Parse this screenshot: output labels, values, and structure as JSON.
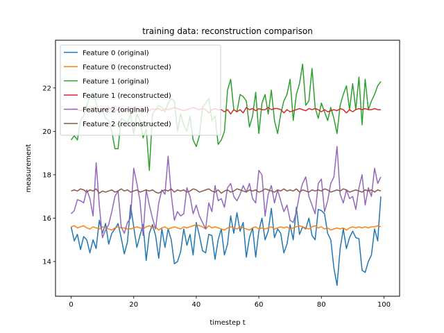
{
  "chart_data": {
    "type": "line",
    "title": "training data: reconstruction comparison",
    "xlabel": "timestep t",
    "ylabel": "measurement",
    "xlim": [
      -5,
      105
    ],
    "ylim": [
      12.4,
      24.2
    ],
    "xticks": [
      0,
      20,
      40,
      60,
      80,
      100
    ],
    "yticks": [
      14,
      16,
      18,
      20,
      22
    ],
    "grid": false,
    "legend_position": "upper-left",
    "x": [
      0,
      1,
      2,
      3,
      4,
      5,
      6,
      7,
      8,
      9,
      10,
      11,
      12,
      13,
      14,
      15,
      16,
      17,
      18,
      19,
      20,
      21,
      22,
      23,
      24,
      25,
      26,
      27,
      28,
      29,
      30,
      31,
      32,
      33,
      34,
      35,
      36,
      37,
      38,
      39,
      40,
      41,
      42,
      43,
      44,
      45,
      46,
      47,
      48,
      49,
      50,
      51,
      52,
      53,
      54,
      55,
      56,
      57,
      58,
      59,
      60,
      61,
      62,
      63,
      64,
      65,
      66,
      67,
      68,
      69,
      70,
      71,
      72,
      73,
      74,
      75,
      76,
      77,
      78,
      79,
      80,
      81,
      82,
      83,
      84,
      85,
      86,
      87,
      88,
      89,
      90,
      91,
      92,
      93,
      94,
      95,
      96,
      97,
      98,
      99
    ],
    "series": [
      {
        "name": "Feature 0 (original)",
        "color": "#1f77b4",
        "values": [
          15.6,
          14.95,
          15.25,
          14.55,
          15.15,
          15.0,
          14.4,
          15.0,
          14.6,
          15.9,
          15.3,
          15.75,
          14.8,
          15.3,
          15.5,
          15.75,
          15.1,
          14.35,
          14.9,
          16.6,
          15.6,
          14.65,
          15.2,
          15.7,
          14.05,
          15.3,
          15.7,
          15.2,
          14.15,
          15.5,
          14.65,
          15.5,
          15.0,
          13.9,
          14.0,
          14.45,
          15.5,
          14.75,
          15.25,
          14.3,
          15.8,
          15.2,
          14.5,
          14.4,
          15.25,
          15.2,
          14.1,
          15.0,
          15.5,
          14.3,
          14.8,
          16.1,
          15.3,
          16.25,
          15.4,
          15.8,
          14.2,
          15.1,
          15.55,
          14.2,
          15.4,
          16.0,
          15.0,
          15.4,
          16.45,
          15.1,
          15.5,
          15.3,
          14.4,
          14.8,
          15.7,
          15.0,
          16.5,
          15.25,
          15.6,
          15.5,
          16.0,
          15.2,
          15.0,
          16.4,
          16.35,
          16.2,
          15.3,
          15.0,
          13.7,
          12.9,
          14.6,
          15.5,
          14.6,
          15.1,
          15.4,
          15.1,
          15.05,
          13.6,
          13.5,
          14.0,
          14.3,
          15.5,
          14.95,
          17.0
        ]
      },
      {
        "name": "Feature 0 (reconstructed)",
        "color": "#ff7f0e",
        "values": [
          15.6,
          15.65,
          15.55,
          15.6,
          15.65,
          15.55,
          15.5,
          15.6,
          15.55,
          15.5,
          15.6,
          15.55,
          15.5,
          15.45,
          15.55,
          15.6,
          15.55,
          15.55,
          15.5,
          15.5,
          15.55,
          15.6,
          15.55,
          15.5,
          15.6,
          15.65,
          15.55,
          15.6,
          15.45,
          15.55,
          15.6,
          15.5,
          15.55,
          15.6,
          15.55,
          15.5,
          15.6,
          15.55,
          15.6,
          15.65,
          15.7,
          15.65,
          15.6,
          15.5,
          15.65,
          15.55,
          15.6,
          15.55,
          15.5,
          15.45,
          15.55,
          15.6,
          15.55,
          15.5,
          15.6,
          15.55,
          15.5,
          15.45,
          15.55,
          15.6,
          15.5,
          15.55,
          15.5,
          15.55,
          15.6,
          15.5,
          15.55,
          15.6,
          15.55,
          15.6,
          15.5,
          15.55,
          15.6,
          15.65,
          15.6,
          15.55,
          15.5,
          15.6,
          15.65,
          15.55,
          15.6,
          15.5,
          15.55,
          15.45,
          15.5,
          15.55,
          15.5,
          15.55,
          15.45,
          15.55,
          15.6,
          15.55,
          15.6,
          15.55,
          15.6,
          15.55,
          15.6,
          15.6,
          15.65,
          15.6
        ]
      },
      {
        "name": "Feature 1 (original)",
        "color": "#2ca02c",
        "values": [
          19.6,
          19.8,
          19.6,
          20.5,
          20.7,
          21.2,
          21.6,
          21.8,
          21.3,
          20.8,
          21.0,
          20.6,
          20.5,
          20.0,
          19.2,
          19.2,
          20.6,
          20.5,
          20.4,
          20.8,
          19.9,
          20.8,
          20.5,
          19.7,
          20.1,
          18.2,
          20.8,
          21.0,
          21.2,
          21.1,
          20.9,
          21.3,
          21.5,
          21.4,
          20.0,
          20.8,
          20.3,
          20.0,
          20.7,
          19.6,
          19.3,
          19.8,
          21.1,
          21.3,
          21.5,
          20.5,
          20.7,
          19.4,
          19.6,
          20.0,
          21.9,
          22.4,
          21.0,
          20.9,
          21.7,
          21.6,
          21.4,
          20.2,
          20.7,
          21.8,
          19.9,
          21.3,
          21.7,
          20.8,
          21.9,
          20.5,
          19.9,
          20.8,
          21.4,
          21.7,
          22.4,
          20.5,
          21.7,
          22.2,
          23.1,
          21.2,
          21.4,
          22.9,
          21.1,
          20.6,
          21.3,
          20.9,
          20.5,
          21.1,
          20.6,
          19.9,
          21.2,
          21.7,
          22.1,
          21.0,
          22.2,
          21.0,
          22.5,
          20.3,
          22.4,
          21.0,
          21.4,
          21.7,
          22.1,
          22.3
        ]
      },
      {
        "name": "Feature 1 (reconstructed)",
        "color": "#d62728",
        "values": [
          21.0,
          21.05,
          21.0,
          20.95,
          21.0,
          21.05,
          21.0,
          21.1,
          21.0,
          20.9,
          21.05,
          21.0,
          21.1,
          21.0,
          20.95,
          21.0,
          21.05,
          20.9,
          21.0,
          21.05,
          21.1,
          21.05,
          21.0,
          21.05,
          21.0,
          20.95,
          21.05,
          21.0,
          21.05,
          20.95,
          21.05,
          21.0,
          21.05,
          21.1,
          21.05,
          21.0,
          20.95,
          21.0,
          21.05,
          21.1,
          21.05,
          21.0,
          21.05,
          21.0,
          20.85,
          21.0,
          21.05,
          21.0,
          21.0,
          20.9,
          21.0,
          20.8,
          21.0,
          20.9,
          21.0,
          20.85,
          21.1,
          21.0,
          21.05,
          20.95,
          21.05,
          21.0,
          21.0,
          21.1,
          21.0,
          21.05,
          21.05,
          21.0,
          20.85,
          21.0,
          20.9,
          20.95,
          21.0,
          21.05,
          21.0,
          20.95,
          21.05,
          21.0,
          21.05,
          21.0,
          20.9,
          21.0,
          20.9,
          20.95,
          21.0,
          20.95,
          21.05,
          21.0,
          20.85,
          21.0,
          20.9,
          21.0,
          21.05,
          21.0,
          21.05,
          21.0,
          21.0,
          21.05,
          21.0,
          21.0
        ]
      },
      {
        "name": "Feature 2 (original)",
        "color": "#9467bd",
        "values": [
          16.2,
          16.35,
          16.85,
          16.8,
          16.7,
          17.3,
          16.9,
          16.1,
          18.55,
          16.6,
          15.1,
          15.45,
          15.7,
          16.3,
          17.0,
          17.25,
          15.6,
          15.3,
          15.8,
          16.0,
          18.3,
          17.6,
          16.8,
          15.2,
          17.3,
          16.6,
          16.0,
          15.5,
          16.7,
          17.3,
          17.1,
          18.85,
          17.1,
          15.9,
          16.3,
          16.1,
          16.2,
          17.4,
          17.0,
          16.2,
          16.6,
          16.1,
          15.8,
          15.5,
          16.7,
          16.3,
          17.5,
          16.8,
          16.9,
          16.5,
          17.4,
          17.6,
          17.0,
          16.8,
          17.1,
          17.5,
          17.2,
          17.6,
          16.9,
          16.7,
          18.2,
          18.0,
          16.1,
          17.1,
          17.5,
          16.7,
          17.3,
          16.8,
          16.3,
          16.6,
          15.9,
          15.8,
          16.3,
          17.1,
          17.6,
          17.9,
          17.0,
          16.6,
          16.2,
          17.6,
          17.8,
          16.3,
          16.8,
          17.6,
          17.9,
          19.3,
          17.1,
          16.7,
          17.3,
          16.9,
          17.0,
          16.4,
          17.4,
          18.0,
          16.6,
          17.4,
          17.0,
          18.3,
          17.6,
          17.9
        ]
      },
      {
        "name": "Feature 2 (reconstructed)",
        "color": "#8c564b",
        "values": [
          17.25,
          17.3,
          17.25,
          17.35,
          17.3,
          17.2,
          17.3,
          17.25,
          17.35,
          17.15,
          17.25,
          17.2,
          17.25,
          17.3,
          17.2,
          17.25,
          17.35,
          17.25,
          17.3,
          17.2,
          17.25,
          17.3,
          17.2,
          17.25,
          17.3,
          17.25,
          17.3,
          17.2,
          17.15,
          17.25,
          17.3,
          17.25,
          17.35,
          17.2,
          17.3,
          17.25,
          17.3,
          17.2,
          17.25,
          17.35,
          17.3,
          17.2,
          17.25,
          17.3,
          17.35,
          17.25,
          17.2,
          17.3,
          17.15,
          17.25,
          17.3,
          17.2,
          17.25,
          17.35,
          17.3,
          17.25,
          17.2,
          17.3,
          17.25,
          17.3,
          17.2,
          17.25,
          17.35,
          17.3,
          17.25,
          17.2,
          17.3,
          17.25,
          17.35,
          17.25,
          17.3,
          17.25,
          17.35,
          17.2,
          17.3,
          17.25,
          17.2,
          17.3,
          17.25,
          17.3,
          17.25,
          17.35,
          17.3,
          17.2,
          17.25,
          17.3,
          17.25,
          17.35,
          17.3,
          17.2,
          17.25,
          17.3,
          17.25,
          17.2,
          17.3,
          17.25,
          17.3,
          17.2,
          17.3,
          17.25
        ]
      }
    ]
  }
}
